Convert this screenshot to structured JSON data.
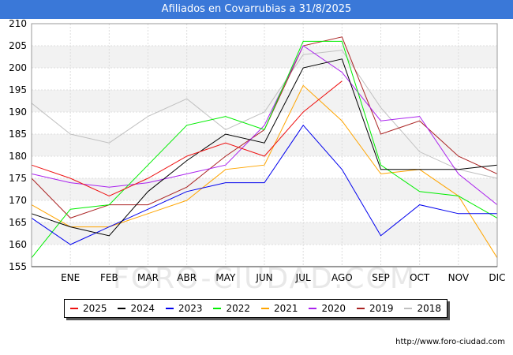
{
  "title": "Afiliados en Covarrubias a 31/8/2025",
  "watermark": "FORO-CIUDAD.COM",
  "url": "http://www.foro-ciudad.com",
  "chart_data": {
    "type": "line",
    "title": "Afiliados en Covarrubias a 31/8/2025",
    "xlabel": "",
    "ylabel": "",
    "categories": [
      "",
      "ENE",
      "FEB",
      "MAR",
      "ABR",
      "MAY",
      "JUN",
      "JUL",
      "AGO",
      "SEP",
      "OCT",
      "NOV",
      "DIC"
    ],
    "ylim": [
      155,
      210
    ],
    "yticks": [
      155,
      160,
      165,
      170,
      175,
      180,
      185,
      190,
      195,
      200,
      205,
      210
    ],
    "grid": true,
    "legend_position": "bottom",
    "series": [
      {
        "name": "2025",
        "color": "#ee1111",
        "values": [
          178,
          175,
          171,
          175,
          180,
          183,
          180,
          190,
          197,
          null,
          null,
          null,
          null
        ]
      },
      {
        "name": "2024",
        "color": "#000000",
        "values": [
          167,
          164,
          162,
          172,
          179,
          185,
          183,
          200,
          202,
          177,
          177,
          177,
          178
        ]
      },
      {
        "name": "2023",
        "color": "#0000ee",
        "values": [
          166,
          160,
          164,
          168,
          172,
          174,
          174,
          187,
          177,
          162,
          169,
          167,
          167
        ]
      },
      {
        "name": "2022",
        "color": "#00ee00",
        "values": [
          157,
          168,
          169,
          178,
          187,
          189,
          186,
          206,
          206,
          178,
          172,
          171,
          166
        ]
      },
      {
        "name": "2021",
        "color": "#ffa500",
        "values": [
          169,
          164,
          164,
          167,
          170,
          177,
          178,
          196,
          188,
          176,
          177,
          171,
          157
        ]
      },
      {
        "name": "2020",
        "color": "#aa22ee",
        "values": [
          176,
          174,
          173,
          174,
          176,
          178,
          187,
          205,
          199,
          188,
          189,
          176,
          169
        ]
      },
      {
        "name": "2019",
        "color": "#aa2222",
        "values": [
          175,
          166,
          169,
          169,
          173,
          180,
          186,
          205,
          207,
          185,
          188,
          180,
          176
        ]
      },
      {
        "name": "2018",
        "color": "#c0c0c0",
        "values": [
          192,
          185,
          183,
          189,
          193,
          186,
          190,
          203,
          204,
          191,
          181,
          177,
          175
        ]
      }
    ]
  }
}
